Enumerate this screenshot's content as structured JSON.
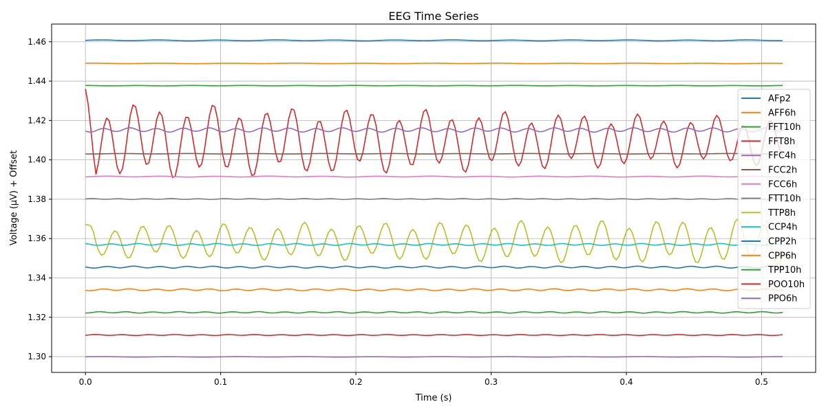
{
  "chart_data": {
    "type": "line",
    "title": "EEG Time Series",
    "xlabel": "Time (s)",
    "ylabel": "Voltage (µV) + Offset",
    "xlim": [
      -0.025,
      0.54
    ],
    "ylim": [
      1.292,
      1.469
    ],
    "xticks": [
      0.0,
      0.1,
      0.2,
      0.3,
      0.4,
      0.5
    ],
    "xtick_labels": [
      "0.0",
      "0.1",
      "0.2",
      "0.3",
      "0.4",
      "0.5"
    ],
    "yticks": [
      1.3,
      1.32,
      1.34,
      1.36,
      1.38,
      1.4,
      1.42,
      1.44,
      1.46
    ],
    "ytick_labels": [
      "1.30",
      "1.32",
      "1.34",
      "1.36",
      "1.38",
      "1.40",
      "1.42",
      "1.44",
      "1.46"
    ],
    "grid": true,
    "legend_position": "right",
    "x_range": [
      0.0,
      0.5156
    ],
    "sample_count": 265,
    "series": [
      {
        "name": "AFp2",
        "color": "#1f77b4",
        "baseline": 1.4607,
        "amplitude": 0.0002,
        "frequency": 23,
        "amplitude_end": 0.0002
      },
      {
        "name": "AFF6h",
        "color": "#ff7f0e",
        "baseline": 1.449,
        "amplitude": 0.0001,
        "frequency": 20,
        "amplitude_end": 0.0001
      },
      {
        "name": "FFT10h",
        "color": "#2ca02c",
        "baseline": 1.4377,
        "amplitude": 0.0001,
        "frequency": 25,
        "amplitude_end": 0.0001
      },
      {
        "name": "FFT8h",
        "color": "#d62728",
        "baseline": 1.4095,
        "amplitude": 0.016,
        "frequency": 51,
        "amplitude_end": 0.01,
        "start_value": 1.436
      },
      {
        "name": "FFC4h",
        "color": "#9467bd",
        "baseline": 1.4152,
        "amplitude": 0.0009,
        "frequency": 51,
        "amplitude_end": 0.0009
      },
      {
        "name": "FCC2h",
        "color": "#8c564b",
        "baseline": 1.4031,
        "amplitude": 0.0001,
        "frequency": 20,
        "amplitude_end": 0.0001
      },
      {
        "name": "FCC6h",
        "color": "#e377c2",
        "baseline": 1.3915,
        "amplitude": 0.0002,
        "frequency": 25,
        "amplitude_end": 0.0002
      },
      {
        "name": "FTT10h",
        "color": "#7f7f7f",
        "baseline": 1.3801,
        "amplitude": 0.0002,
        "frequency": 51,
        "amplitude_end": 0.0002
      },
      {
        "name": "TTP8h",
        "color": "#bcbd22",
        "baseline": 1.3585,
        "amplitude": 0.007,
        "frequency": 50,
        "amplitude_end": 0.0095,
        "start_value": 1.367
      },
      {
        "name": "CCP4h",
        "color": "#17becf",
        "baseline": 1.357,
        "amplitude": 0.0004,
        "frequency": 51,
        "amplitude_end": 0.0004
      },
      {
        "name": "CPP2h",
        "color": "#1f77b4",
        "baseline": 1.3455,
        "amplitude": 0.0004,
        "frequency": 51,
        "amplitude_end": 0.0004
      },
      {
        "name": "CPP6h",
        "color": "#ff7f0e",
        "baseline": 1.334,
        "amplitude": 0.0004,
        "frequency": 51,
        "amplitude_end": 0.0004
      },
      {
        "name": "TPP10h",
        "color": "#2ca02c",
        "baseline": 1.3225,
        "amplitude": 0.0003,
        "frequency": 51,
        "amplitude_end": 0.0003
      },
      {
        "name": "POO10h",
        "color": "#d62728",
        "baseline": 1.311,
        "amplitude": 0.0002,
        "frequency": 51,
        "amplitude_end": 0.0002
      },
      {
        "name": "PPO6h",
        "color": "#9467bd",
        "baseline": 1.2999,
        "amplitude": 0.0001,
        "frequency": 20,
        "amplitude_end": 0.0001
      }
    ]
  }
}
